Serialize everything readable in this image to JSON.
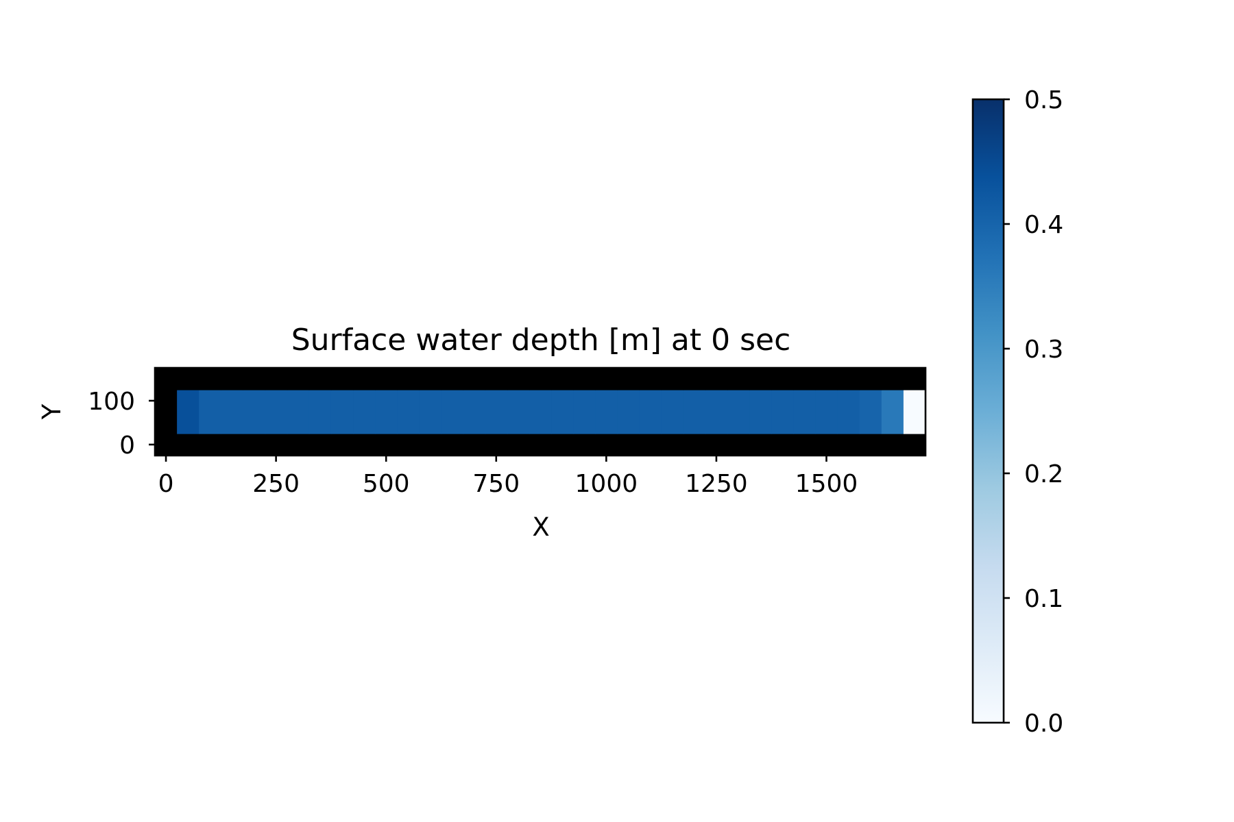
{
  "chart_data": {
    "type": "heatmap",
    "title": "Surface water depth [m] at 0 sec",
    "xlabel": "X",
    "ylabel": "Y",
    "xlim": [
      -25,
      1725
    ],
    "ylim": [
      -25,
      175
    ],
    "x_ticks": [
      0,
      250,
      500,
      750,
      1000,
      1250,
      1500
    ],
    "y_ticks": [
      0,
      100
    ],
    "cell_size": 50,
    "x_centers": [
      0,
      50,
      100,
      150,
      200,
      250,
      300,
      350,
      400,
      450,
      500,
      550,
      600,
      650,
      700,
      750,
      800,
      850,
      900,
      950,
      1000,
      1050,
      1100,
      1150,
      1200,
      1250,
      1300,
      1350,
      1400,
      1450,
      1500,
      1550,
      1600,
      1650,
      1700
    ],
    "y_centers": [
      0,
      50,
      100,
      150
    ],
    "masked_value_color": "#000000",
    "values": [
      [
        null,
        null,
        null,
        null,
        null,
        null,
        null,
        null,
        null,
        null,
        null,
        null,
        null,
        null,
        null,
        null,
        null,
        null,
        null,
        null,
        null,
        null,
        null,
        null,
        null,
        null,
        null,
        null,
        null,
        null,
        null,
        null,
        null,
        null,
        null
      ],
      [
        null,
        0.44,
        0.41,
        0.41,
        0.41,
        0.41,
        0.41,
        0.41,
        0.41,
        0.41,
        0.41,
        0.41,
        0.41,
        0.41,
        0.41,
        0.41,
        0.41,
        0.41,
        0.41,
        0.41,
        0.41,
        0.41,
        0.41,
        0.41,
        0.41,
        0.41,
        0.41,
        0.41,
        0.41,
        0.41,
        0.41,
        0.41,
        0.4,
        0.36,
        0.0
      ],
      [
        null,
        0.44,
        0.41,
        0.41,
        0.41,
        0.41,
        0.41,
        0.41,
        0.41,
        0.41,
        0.41,
        0.41,
        0.41,
        0.41,
        0.41,
        0.41,
        0.41,
        0.41,
        0.41,
        0.41,
        0.41,
        0.41,
        0.41,
        0.41,
        0.41,
        0.41,
        0.41,
        0.41,
        0.41,
        0.41,
        0.41,
        0.41,
        0.4,
        0.36,
        0.0
      ],
      [
        null,
        null,
        null,
        null,
        null,
        null,
        null,
        null,
        null,
        null,
        null,
        null,
        null,
        null,
        null,
        null,
        null,
        null,
        null,
        null,
        null,
        null,
        null,
        null,
        null,
        null,
        null,
        null,
        null,
        null,
        null,
        null,
        null,
        null,
        null
      ]
    ],
    "colorbar": {
      "colormap": "Blues",
      "vmin": 0.0,
      "vmax": 0.5,
      "tick_values": [
        0.0,
        0.1,
        0.2,
        0.3,
        0.4,
        0.5
      ],
      "tick_labels": [
        "0.0",
        "0.1",
        "0.2",
        "0.3",
        "0.4",
        "0.5"
      ]
    },
    "grid": false
  }
}
